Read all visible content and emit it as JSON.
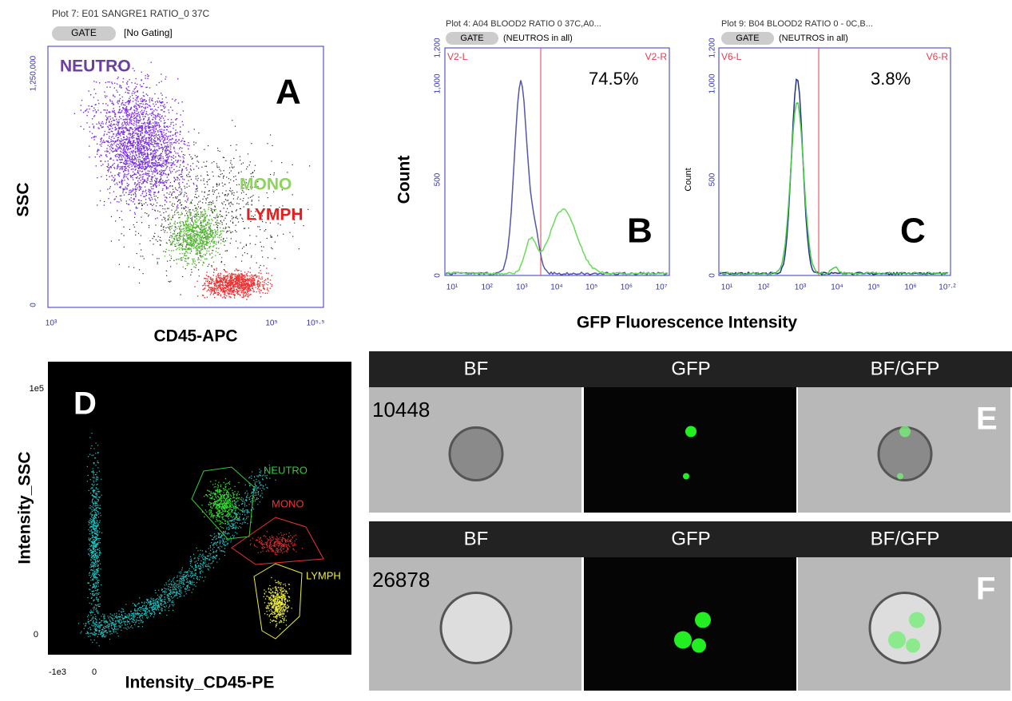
{
  "panel_a": {
    "label": "A",
    "plot_title": "Plot 7: E01 SANGRE1 RATIO_0 37C",
    "gate_button": "GATE",
    "gate": "[No Gating]",
    "y_axis": "SSC",
    "x_axis": "CD45-APC",
    "yticks": [
      "1,250,000",
      "0"
    ],
    "xticks": [
      "10³",
      "10⁵",
      "10⁵·⁵"
    ],
    "populations": [
      "NEUTRO",
      "MONO",
      "LYMPH"
    ]
  },
  "panel_b": {
    "label": "B",
    "plot_title": "Plot 4: A04 BLOOD2 RATIO 0 37C,A0...",
    "gate_button": "GATE",
    "gate": "(NEUTROS in all)",
    "left_region": "V2-L",
    "right_region": "V2-R",
    "percent": "74.5%",
    "y_axis": "Count",
    "yticks": [
      "1,200",
      "1,000",
      "500",
      "0"
    ],
    "xticks": [
      "10¹",
      "10²",
      "10³",
      "10⁴",
      "10⁵",
      "10⁶",
      "10⁷"
    ]
  },
  "panel_c": {
    "label": "C",
    "plot_title": "Plot 9: B04 BLOOD2 RATIO 0 - 0C,B...",
    "gate_button": "GATE",
    "gate": "(NEUTROS in all)",
    "left_region": "V6-L",
    "right_region": "V6-R",
    "percent": "3.8%",
    "y_axis": "Count",
    "yticks": [
      "1,200",
      "1,000",
      "500",
      "0"
    ],
    "xticks": [
      "10¹",
      "10²",
      "10³",
      "10⁴",
      "10⁵",
      "10⁶",
      "10⁷·²"
    ]
  },
  "shared_x_axis": "GFP Fluorescence Intensity",
  "panel_d": {
    "label": "D",
    "y_axis": "Intensity_SSC",
    "x_axis": "Intensity_CD45-PE",
    "yticks": [
      "1e5",
      "0"
    ],
    "xticks": [
      "-1e3",
      "0"
    ],
    "gates": [
      "NEUTRO",
      "MONO",
      "LYMPH"
    ]
  },
  "panel_e": {
    "label": "E",
    "columns": [
      "BF",
      "GFP",
      "BF/GFP"
    ],
    "object_id": "10448"
  },
  "panel_f": {
    "label": "F",
    "columns": [
      "BF",
      "GFP",
      "BF/GFP"
    ],
    "object_id": "26878"
  }
}
